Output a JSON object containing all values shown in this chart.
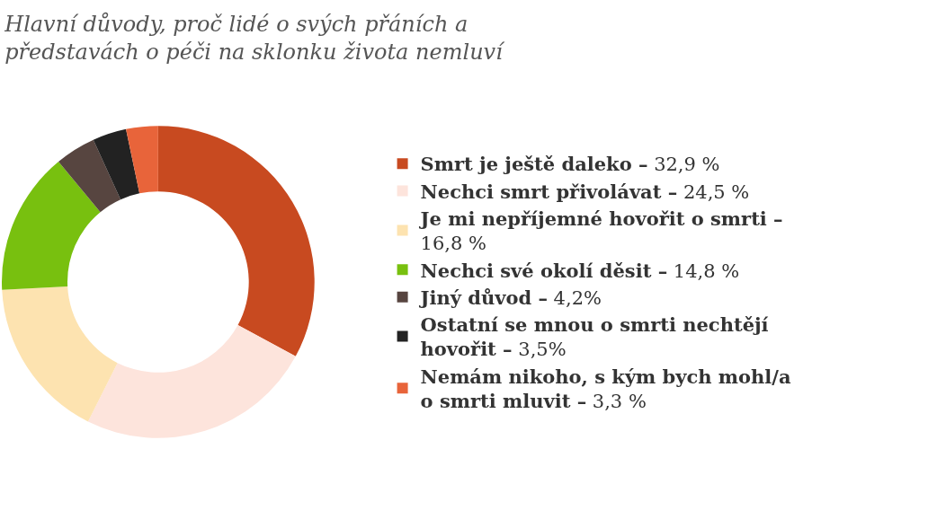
{
  "chart_data": {
    "type": "donut",
    "title": "Hlavní důvody, proč lidé o svých přáních a představách o péči na sklonku života nemluví",
    "categories": [
      "Smrt je ještě daleko –",
      "Nechci smrt přivolávat –",
      "Je mi nepříjemné hovořit o smrti –",
      "Nechci své okolí děsit –",
      "Jiný důvod –",
      "Ostatní se mnou o smrti nechtějí hovořit –",
      "Nemám nikoho, s kým bych mohl/a o smrti mluvit –"
    ],
    "values": [
      32.9,
      24.5,
      16.8,
      14.8,
      4.2,
      3.5,
      3.3
    ],
    "value_labels": [
      "32,9 %",
      "24,5 %",
      "16,8 %",
      "14,8 %",
      "4,2%",
      "3,5%",
      "3,3 %"
    ],
    "colors": [
      "#c84a20",
      "#fde4dc",
      "#fde3b0",
      "#78c00f",
      "#574540",
      "#222222",
      "#e8643a"
    ],
    "legend": "right"
  }
}
